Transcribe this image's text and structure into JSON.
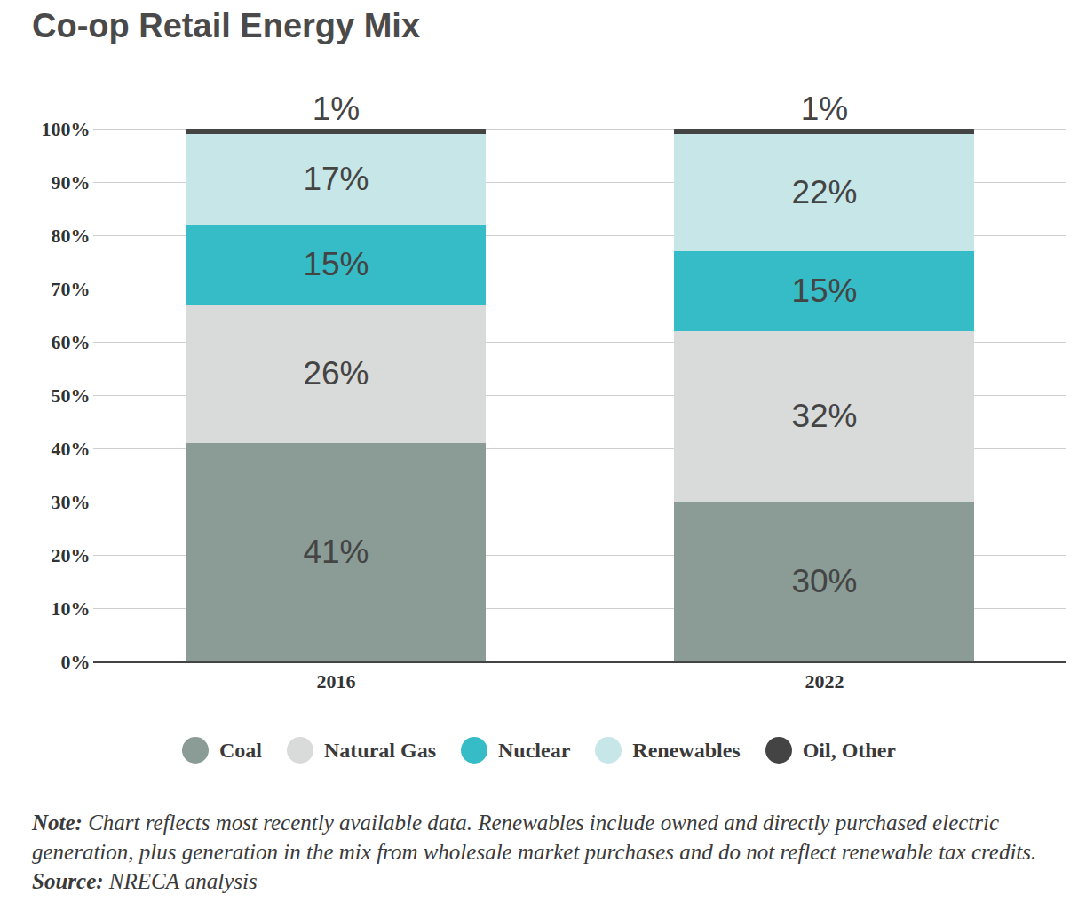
{
  "chart_data": {
    "type": "bar",
    "title": "Co-op Retail Energy Mix",
    "stacked": true,
    "data_labels": true,
    "grid": true,
    "legend": "bottom",
    "categories": [
      "2016",
      "2022"
    ],
    "series": [
      {
        "name": "Coal",
        "color": "#8a9c95",
        "values": [
          41,
          30
        ],
        "value_labels": [
          "41%",
          "30%"
        ]
      },
      {
        "name": "Natural Gas",
        "color": "#d9dbda",
        "values": [
          26,
          32
        ],
        "value_labels": [
          "26%",
          "32%"
        ]
      },
      {
        "name": "Nuclear",
        "color": "#36bcc6",
        "values": [
          15,
          15
        ],
        "value_labels": [
          "15%",
          "15%"
        ]
      },
      {
        "name": "Renewables",
        "color": "#c6e6e8",
        "values": [
          17,
          22
        ],
        "value_labels": [
          "17%",
          "22%"
        ]
      },
      {
        "name": "Oil, Other",
        "color": "#444444",
        "values": [
          1,
          1
        ],
        "value_labels": [
          "1%",
          "1%"
        ]
      }
    ],
    "ylim": [
      0,
      100
    ],
    "yticks": [
      {
        "value": 0,
        "label": "0%"
      },
      {
        "value": 10,
        "label": "10%"
      },
      {
        "value": 20,
        "label": "20%"
      },
      {
        "value": 30,
        "label": "30%"
      },
      {
        "value": 40,
        "label": "40%"
      },
      {
        "value": 50,
        "label": "50%"
      },
      {
        "value": 60,
        "label": "60%"
      },
      {
        "value": 70,
        "label": "70%"
      },
      {
        "value": 80,
        "label": "80%"
      },
      {
        "value": 90,
        "label": "90%"
      },
      {
        "value": 100,
        "label": "100%"
      }
    ],
    "note": {
      "label": "Note:",
      "text": "Chart reflects most recently available data. Renewables include owned and directly purchased electric generation, plus generation in the mix from wholesale market purchases and do not reflect renewable tax credits."
    },
    "source": {
      "label": "Source:",
      "text": "NRECA analysis"
    }
  }
}
